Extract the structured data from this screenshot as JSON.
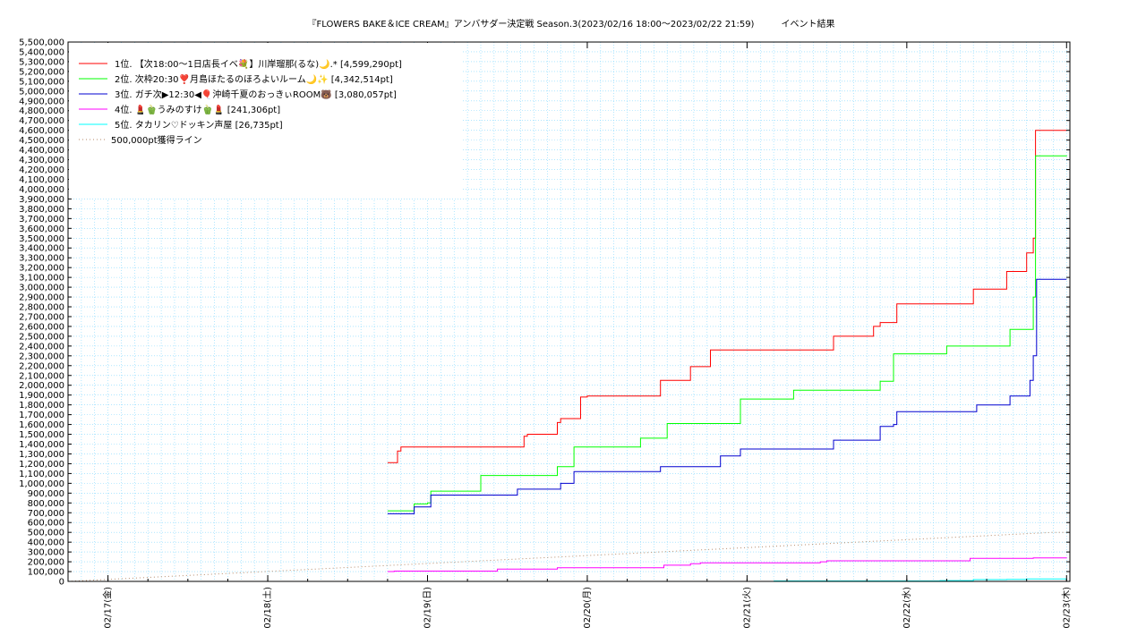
{
  "chart_data": {
    "type": "line",
    "title": "『FLOWERS BAKE＆ICE CREAM』アンバサダー決定戦 Season.3(2023/02/16 18:00～2023/02/22 21:59)　　　イベント結果",
    "x_range": [
      "2023-02-16T18:00",
      "2023-02-23T00:30"
    ],
    "x_ticks": [
      "02/17(金)",
      "02/18(土)",
      "02/19(日)",
      "02/20(月)",
      "02/21(火)",
      "02/22(水)",
      "02/23(木)"
    ],
    "ylim": [
      0,
      5500000
    ],
    "y_tick_step": 100000,
    "grid": true,
    "legend_position": "top-left",
    "colors": {
      "series1": "#ff0000",
      "series2": "#00ff00",
      "series3": "#0000d0",
      "series4": "#ff00ff",
      "series5": "#00ffff",
      "line": "#b58a6a",
      "grid": "#7fd7ff"
    },
    "series": [
      {
        "name": "1位. 【次18:00～1日店長イベ💐】川岸瑠那(るな)🌙.* [4,599,290pt]",
        "color": "#ff0000",
        "points": [
          [
            "2023-02-18T18:00",
            1210000
          ],
          [
            "2023-02-18T19:00",
            1210000
          ],
          [
            "2023-02-18T19:30",
            1330000
          ],
          [
            "2023-02-18T20:00",
            1370000
          ],
          [
            "2023-02-19T14:00",
            1370000
          ],
          [
            "2023-02-19T14:30",
            1480000
          ],
          [
            "2023-02-19T15:00",
            1500000
          ],
          [
            "2023-02-19T19:00",
            1500000
          ],
          [
            "2023-02-19T19:30",
            1620000
          ],
          [
            "2023-02-19T20:00",
            1660000
          ],
          [
            "2023-02-19T22:00",
            1660000
          ],
          [
            "2023-02-19T23:00",
            1880000
          ],
          [
            "2023-02-20T00:00",
            1890000
          ],
          [
            "2023-02-20T10:30",
            1890000
          ],
          [
            "2023-02-20T11:00",
            2050000
          ],
          [
            "2023-02-20T15:00",
            2050000
          ],
          [
            "2023-02-20T15:30",
            2190000
          ],
          [
            "2023-02-20T17:30",
            2190000
          ],
          [
            "2023-02-20T18:30",
            2360000
          ],
          [
            "2023-02-21T12:30",
            2360000
          ],
          [
            "2023-02-21T13:00",
            2500000
          ],
          [
            "2023-02-21T18:30",
            2500000
          ],
          [
            "2023-02-21T19:00",
            2600000
          ],
          [
            "2023-02-21T20:00",
            2640000
          ],
          [
            "2023-02-21T21:30",
            2640000
          ],
          [
            "2023-02-21T22:30",
            2830000
          ],
          [
            "2023-02-22T09:30",
            2830000
          ],
          [
            "2023-02-22T10:00",
            2980000
          ],
          [
            "2023-02-22T14:30",
            2980000
          ],
          [
            "2023-02-22T15:00",
            3160000
          ],
          [
            "2023-02-22T17:00",
            3160000
          ],
          [
            "2023-02-22T18:00",
            3350000
          ],
          [
            "2023-02-22T19:00",
            3500000
          ],
          [
            "2023-02-22T19:20",
            4600000
          ],
          [
            "2023-02-23T00:00",
            4599290
          ]
        ]
      },
      {
        "name": "2位. 次枠20:30❣️月島ほたるのほろよいルーム🌙✨ [4,342,514pt]",
        "color": "#00ff00",
        "points": [
          [
            "2023-02-18T18:00",
            720000
          ],
          [
            "2023-02-18T21:00",
            720000
          ],
          [
            "2023-02-18T22:00",
            790000
          ],
          [
            "2023-02-19T00:00",
            800000
          ],
          [
            "2023-02-19T00:30",
            920000
          ],
          [
            "2023-02-19T07:30",
            920000
          ],
          [
            "2023-02-19T08:00",
            1080000
          ],
          [
            "2023-02-19T19:00",
            1080000
          ],
          [
            "2023-02-19T19:30",
            1170000
          ],
          [
            "2023-02-19T21:30",
            1170000
          ],
          [
            "2023-02-19T22:00",
            1370000
          ],
          [
            "2023-02-20T07:30",
            1370000
          ],
          [
            "2023-02-20T08:00",
            1460000
          ],
          [
            "2023-02-20T11:30",
            1460000
          ],
          [
            "2023-02-20T12:00",
            1610000
          ],
          [
            "2023-02-20T22:00",
            1610000
          ],
          [
            "2023-02-20T23:00",
            1860000
          ],
          [
            "2023-02-21T06:30",
            1860000
          ],
          [
            "2023-02-21T07:00",
            1950000
          ],
          [
            "2023-02-21T19:30",
            1950000
          ],
          [
            "2023-02-21T20:00",
            2040000
          ],
          [
            "2023-02-21T21:30",
            2040000
          ],
          [
            "2023-02-21T22:00",
            2320000
          ],
          [
            "2023-02-22T05:30",
            2320000
          ],
          [
            "2023-02-22T06:00",
            2400000
          ],
          [
            "2023-02-22T15:00",
            2400000
          ],
          [
            "2023-02-22T15:30",
            2570000
          ],
          [
            "2023-02-22T17:30",
            2570000
          ],
          [
            "2023-02-22T19:00",
            2900000
          ],
          [
            "2023-02-22T19:20",
            4340000
          ],
          [
            "2023-02-23T00:00",
            4342514
          ]
        ]
      },
      {
        "name": "3位. ガチ次▶12:30◀🎈沖崎千夏のおっきぃROOM🐻 [3,080,057pt]",
        "color": "#0000d0",
        "points": [
          [
            "2023-02-18T18:00",
            690000
          ],
          [
            "2023-02-18T21:00",
            690000
          ],
          [
            "2023-02-18T22:00",
            760000
          ],
          [
            "2023-02-19T00:00",
            760000
          ],
          [
            "2023-02-19T00:30",
            880000
          ],
          [
            "2023-02-19T13:00",
            880000
          ],
          [
            "2023-02-19T13:30",
            940000
          ],
          [
            "2023-02-19T19:30",
            940000
          ],
          [
            "2023-02-19T20:00",
            1000000
          ],
          [
            "2023-02-19T21:30",
            1000000
          ],
          [
            "2023-02-19T22:00",
            1120000
          ],
          [
            "2023-02-20T10:30",
            1120000
          ],
          [
            "2023-02-20T11:00",
            1170000
          ],
          [
            "2023-02-20T19:30",
            1170000
          ],
          [
            "2023-02-20T20:00",
            1280000
          ],
          [
            "2023-02-20T22:00",
            1280000
          ],
          [
            "2023-02-20T23:00",
            1350000
          ],
          [
            "2023-02-21T12:30",
            1350000
          ],
          [
            "2023-02-21T13:00",
            1440000
          ],
          [
            "2023-02-21T19:30",
            1440000
          ],
          [
            "2023-02-21T20:00",
            1580000
          ],
          [
            "2023-02-21T22:00",
            1600000
          ],
          [
            "2023-02-21T22:30",
            1730000
          ],
          [
            "2023-02-22T10:00",
            1730000
          ],
          [
            "2023-02-22T10:30",
            1800000
          ],
          [
            "2023-02-22T15:00",
            1800000
          ],
          [
            "2023-02-22T15:30",
            1890000
          ],
          [
            "2023-02-22T17:00",
            1890000
          ],
          [
            "2023-02-22T18:30",
            2050000
          ],
          [
            "2023-02-22T19:00",
            2300000
          ],
          [
            "2023-02-22T19:30",
            3080000
          ],
          [
            "2023-02-23T00:00",
            3080057
          ]
        ]
      },
      {
        "name": "4位. 💄🫑うみのすけ🫑💄 [241,306pt]",
        "color": "#ff00ff",
        "points": [
          [
            "2023-02-18T18:00",
            100000
          ],
          [
            "2023-02-18T19:00",
            105000
          ],
          [
            "2023-02-19T10:00",
            105000
          ],
          [
            "2023-02-19T10:30",
            125000
          ],
          [
            "2023-02-19T19:00",
            125000
          ],
          [
            "2023-02-19T19:30",
            140000
          ],
          [
            "2023-02-20T11:00",
            140000
          ],
          [
            "2023-02-20T11:30",
            165000
          ],
          [
            "2023-02-20T15:00",
            165000
          ],
          [
            "2023-02-20T15:30",
            180000
          ],
          [
            "2023-02-20T17:00",
            190000
          ],
          [
            "2023-02-21T10:00",
            190000
          ],
          [
            "2023-02-21T11:00",
            200000
          ],
          [
            "2023-02-21T12:00",
            210000
          ],
          [
            "2023-02-22T08:30",
            210000
          ],
          [
            "2023-02-22T09:30",
            235000
          ],
          [
            "2023-02-22T19:00",
            240000
          ],
          [
            "2023-02-23T00:00",
            241306
          ]
        ]
      },
      {
        "name": "5位. タカリン♡ドッキン声屋 [26,735pt]",
        "color": "#00ffff",
        "points": [
          [
            "2023-02-21T04:00",
            5000
          ],
          [
            "2023-02-22T05:00",
            8000
          ],
          [
            "2023-02-22T10:00",
            18000
          ],
          [
            "2023-02-22T15:00",
            20000
          ],
          [
            "2023-02-22T18:00",
            25000
          ],
          [
            "2023-02-23T00:00",
            26735
          ]
        ]
      }
    ],
    "reference_line": {
      "name": "500,000pt獲得ライン",
      "color": "#b58a6a",
      "points": [
        [
          "2023-02-16T18:00",
          0
        ],
        [
          "2023-02-22T22:00",
          500000
        ],
        [
          "2023-02-23T00:30",
          500000
        ]
      ]
    }
  }
}
